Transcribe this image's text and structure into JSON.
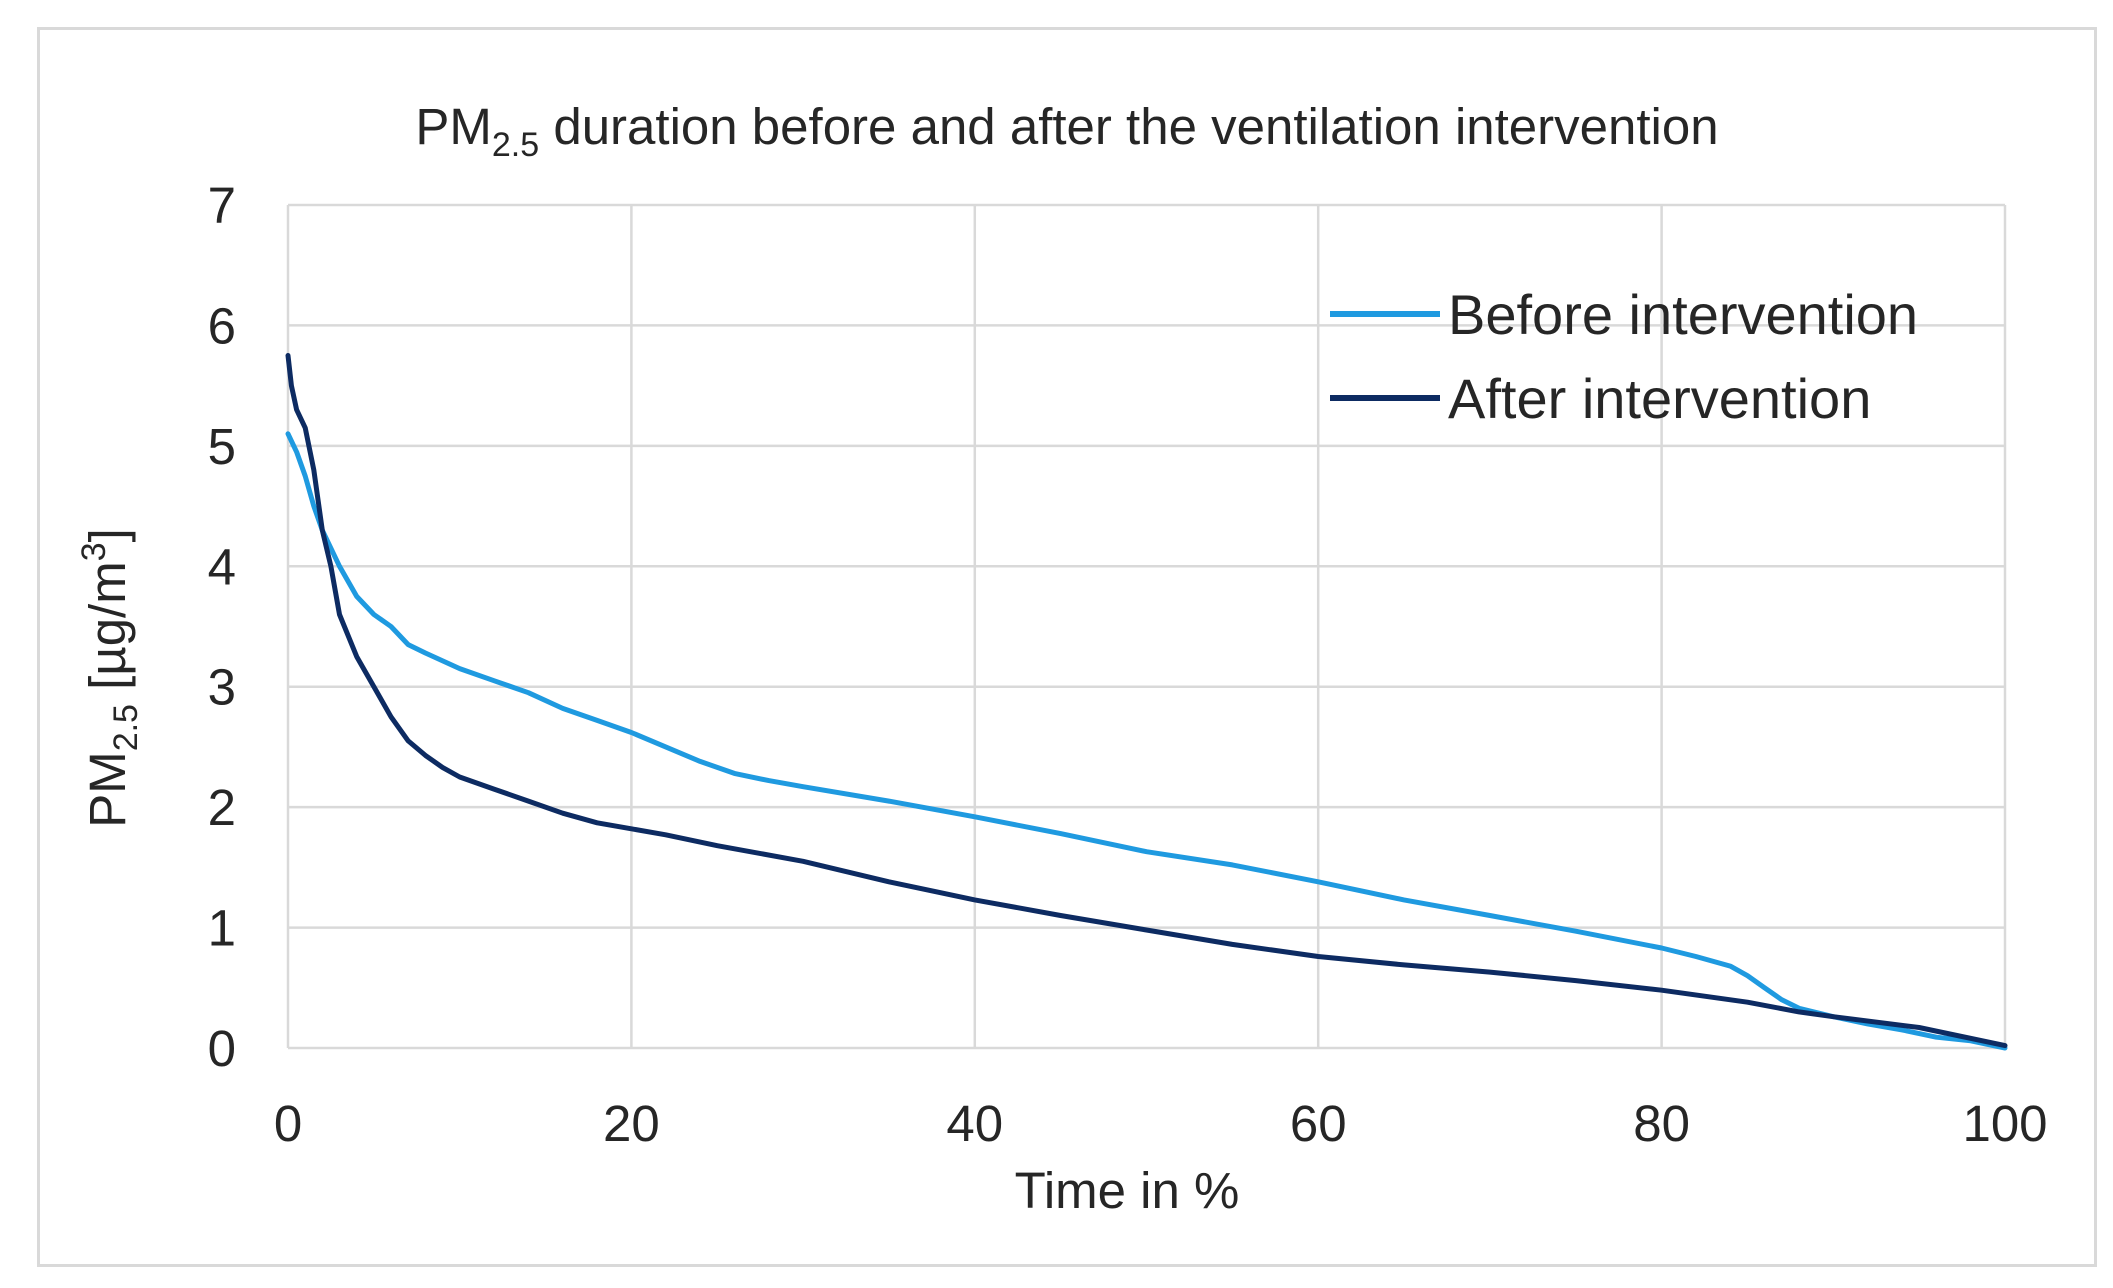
{
  "chart_data": {
    "type": "line",
    "title": {
      "prefix": "PM",
      "subscript": "2.5",
      "suffix": " duration before and after the ventilation intervention"
    },
    "xlabel": "Time in %",
    "ylabel": {
      "prefix": "PM",
      "subscript": "2.5",
      "middle": " [µg/m",
      "superscript": "3",
      "suffix": "]"
    },
    "xlim": [
      0,
      100
    ],
    "ylim": [
      0,
      7
    ],
    "xticks": [
      0,
      20,
      40,
      60,
      80,
      100
    ],
    "yticks": [
      0,
      1,
      2,
      3,
      4,
      5,
      6,
      7
    ],
    "grid": true,
    "legend_position": "top-right",
    "series": [
      {
        "name": "Before intervention",
        "color": "#1f9ae0",
        "x": [
          0,
          0.5,
          1,
          1.5,
          2,
          3,
          4,
          5,
          6,
          7,
          8,
          10,
          12,
          14,
          16,
          18,
          20,
          22,
          24,
          26,
          28,
          30,
          35,
          40,
          45,
          50,
          55,
          60,
          65,
          70,
          75,
          80,
          82,
          84,
          85,
          86,
          87,
          88,
          90,
          92,
          94,
          96,
          98,
          100
        ],
        "y": [
          5.1,
          4.95,
          4.75,
          4.5,
          4.3,
          4.0,
          3.75,
          3.6,
          3.5,
          3.35,
          3.28,
          3.15,
          3.05,
          2.95,
          2.82,
          2.72,
          2.62,
          2.5,
          2.38,
          2.28,
          2.22,
          2.17,
          2.05,
          1.92,
          1.78,
          1.63,
          1.52,
          1.38,
          1.23,
          1.1,
          0.97,
          0.83,
          0.76,
          0.68,
          0.6,
          0.5,
          0.4,
          0.33,
          0.26,
          0.2,
          0.15,
          0.09,
          0.06,
          0.0
        ]
      },
      {
        "name": "After intervention",
        "color": "#0d2b62",
        "x": [
          0,
          0.2,
          0.5,
          1,
          1.5,
          2,
          2.5,
          3,
          4,
          5,
          6,
          7,
          8,
          9,
          10,
          12,
          14,
          16,
          18,
          20,
          22,
          25,
          30,
          35,
          40,
          45,
          50,
          55,
          60,
          65,
          70,
          75,
          80,
          85,
          88,
          90,
          95,
          100
        ],
        "y": [
          5.75,
          5.5,
          5.3,
          5.15,
          4.8,
          4.3,
          4.0,
          3.6,
          3.25,
          3.0,
          2.75,
          2.55,
          2.43,
          2.33,
          2.25,
          2.15,
          2.05,
          1.95,
          1.87,
          1.82,
          1.77,
          1.68,
          1.55,
          1.38,
          1.23,
          1.1,
          0.98,
          0.86,
          0.76,
          0.69,
          0.63,
          0.56,
          0.48,
          0.38,
          0.3,
          0.26,
          0.17,
          0.02
        ]
      }
    ]
  }
}
